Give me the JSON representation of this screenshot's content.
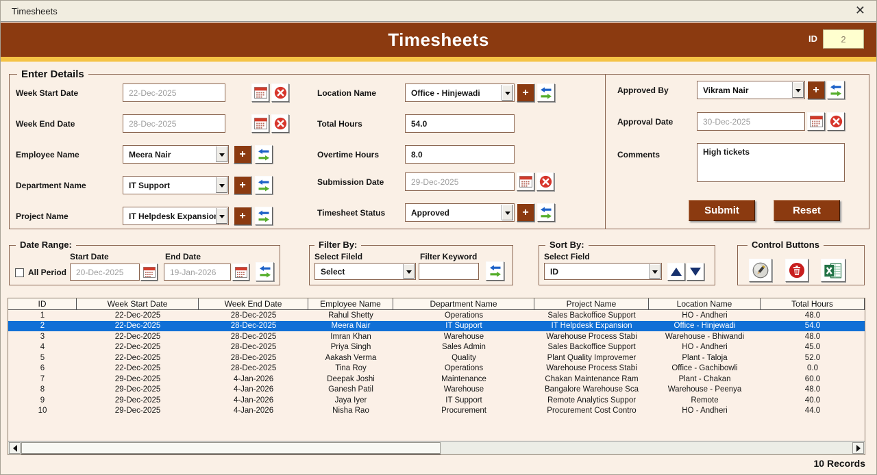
{
  "window": {
    "title": "Timesheets",
    "close_glyph": "✕"
  },
  "header": {
    "title": "Timesheets",
    "id_label": "ID",
    "id_value": "2"
  },
  "colors": {
    "header_brown": "#8B3A10",
    "gold_stripe": "#F5C345",
    "selection_blue": "#1070D6",
    "button_brown": "#8B3A10"
  },
  "enter_details": {
    "legend": "Enter Details",
    "week_start": {
      "label": "Week Start Date",
      "value": "22-Dec-2025"
    },
    "week_end": {
      "label": "Week End Date",
      "value": "28-Dec-2025"
    },
    "employee": {
      "label": "Employee Name",
      "value": "Meera Nair"
    },
    "department": {
      "label": "Department Name",
      "value": "IT Support"
    },
    "project": {
      "label": "Project Name",
      "value": "IT Helpdesk Expansion"
    },
    "location": {
      "label": "Location Name",
      "value": "Office - Hinjewadi"
    },
    "total_hours": {
      "label": "Total Hours",
      "value": "54.0"
    },
    "overtime_hours": {
      "label": "Overtime Hours",
      "value": "8.0"
    },
    "submission_date": {
      "label": "Submission Date",
      "value": "29-Dec-2025"
    },
    "timesheet_status": {
      "label": "Timesheet Status",
      "value": "Approved"
    },
    "approved_by": {
      "label": "Approved By",
      "value": "Vikram Nair"
    },
    "approval_date": {
      "label": "Approval Date",
      "value": "30-Dec-2025"
    },
    "comments": {
      "label": "Comments",
      "value": "High tickets"
    },
    "submit_label": "Submit",
    "reset_label": "Reset"
  },
  "date_range": {
    "legend": "Date Range:",
    "all_period_label": "All Period",
    "start_label": "Start Date",
    "start_value": "20-Dec-2025",
    "end_label": "End Date",
    "end_value": "19-Jan-2026"
  },
  "filter_by": {
    "legend": "Filter By:",
    "field_label": "Select Fileld",
    "field_value": "Select",
    "keyword_label": "Filter Keyword",
    "keyword_value": ""
  },
  "sort_by": {
    "legend": "Sort By:",
    "field_label": "Select Field",
    "field_value": "ID"
  },
  "control_buttons": {
    "legend": "Control Buttons"
  },
  "table": {
    "columns": [
      "ID",
      "Week Start Date",
      "Week End Date",
      "Employee Name",
      "Department Name",
      "Project Name",
      "Location Name",
      "Total Hours"
    ],
    "selected_index": 1,
    "rows": [
      [
        "1",
        "22-Dec-2025",
        "28-Dec-2025",
        "Rahul Shetty",
        "Operations",
        "Sales Backoffice Support",
        "HO - Andheri",
        "48.0"
      ],
      [
        "2",
        "22-Dec-2025",
        "28-Dec-2025",
        "Meera Nair",
        "IT Support",
        "IT Helpdesk Expansion",
        "Office - Hinjewadi",
        "54.0"
      ],
      [
        "3",
        "22-Dec-2025",
        "28-Dec-2025",
        "Imran Khan",
        "Warehouse",
        "Warehouse Process Stabi",
        "Warehouse - Bhiwandi",
        "48.0"
      ],
      [
        "4",
        "22-Dec-2025",
        "28-Dec-2025",
        "Priya Singh",
        "Sales Admin",
        "Sales Backoffice Support",
        "HO - Andheri",
        "45.0"
      ],
      [
        "5",
        "22-Dec-2025",
        "28-Dec-2025",
        "Aakash Verma",
        "Quality",
        "Plant Quality Improvemer",
        "Plant - Taloja",
        "52.0"
      ],
      [
        "6",
        "22-Dec-2025",
        "28-Dec-2025",
        "Tina Roy",
        "Operations",
        "Warehouse Process Stabi",
        "Office - Gachibowli",
        "0.0"
      ],
      [
        "7",
        "29-Dec-2025",
        "4-Jan-2026",
        "Deepak Joshi",
        "Maintenance",
        "Chakan Maintenance Ram",
        "Plant - Chakan",
        "60.0"
      ],
      [
        "8",
        "29-Dec-2025",
        "4-Jan-2026",
        "Ganesh Patil",
        "Warehouse",
        "Bangalore Warehouse Sca",
        "Warehouse - Peenya",
        "48.0"
      ],
      [
        "9",
        "29-Dec-2025",
        "4-Jan-2026",
        "Jaya Iyer",
        "IT Support",
        "Remote Analytics Suppor",
        "Remote",
        "40.0"
      ],
      [
        "10",
        "29-Dec-2025",
        "4-Jan-2026",
        "Nisha Rao",
        "Procurement",
        "Procurement Cost Contro",
        "HO - Andheri",
        "44.0"
      ]
    ]
  },
  "status": {
    "records_label": "10 Records"
  }
}
